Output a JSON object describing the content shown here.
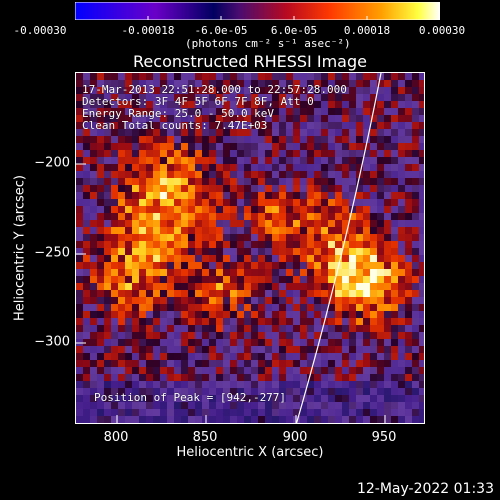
{
  "colorbar": {
    "tick_labels": [
      "-0.00030",
      "-0.00018",
      "-6.0e-05",
      "6.0e-05",
      "0.00018",
      "0.00030"
    ],
    "unit_label": "(photons cm",
    "unit_full": "(photons cm⁻² s⁻¹ asec⁻²)",
    "colors": [
      "#0000ff",
      "#6a00a8",
      "#00004c",
      "#5c1070",
      "#c82000",
      "#ff6a00",
      "#ffc800",
      "#ffffff"
    ]
  },
  "title": "Reconstructed RHESSI Image",
  "annotations": {
    "time_range": "17-Mar-2013 22:51:28.000 to 22:57:28.000",
    "detectors": "Detectors: 3F 4F 5F 6F 7F 8F, Att 0",
    "energy_range": "Energy Range: 25.0 - 50.0 keV",
    "clean_counts": "Clean     Total counts: 7.47E+03",
    "peak_position": "Position of Peak = [942,-277]"
  },
  "axes": {
    "xlabel": "Heliocentric X (arcsec)",
    "ylabel": "Heliocentric Y (arcsec)",
    "xticks": [
      "800",
      "850",
      "900",
      "950"
    ],
    "yticks": [
      "−200",
      "−250",
      "−300"
    ],
    "xlim": [
      780,
      970
    ],
    "ylim": [
      -348,
      -155
    ]
  },
  "footer": {
    "date": "12-May-2022 01:33"
  }
}
